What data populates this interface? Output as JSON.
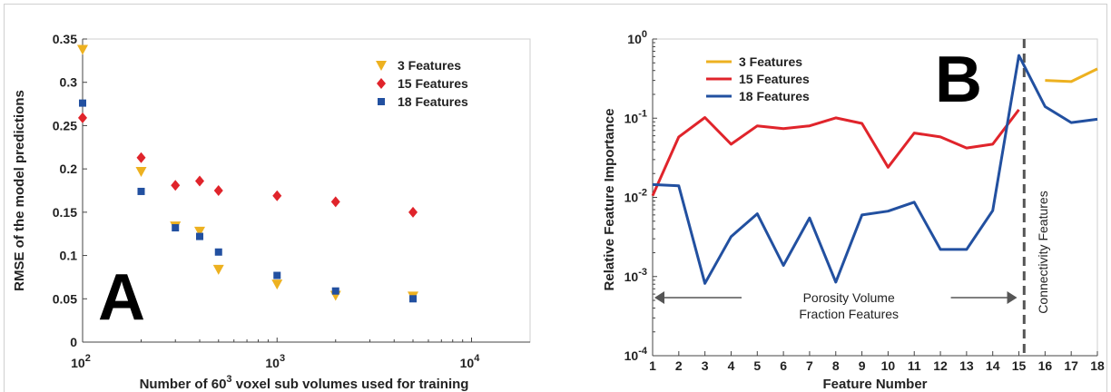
{
  "chart_data": [
    {
      "type": "scatter",
      "panel_label": "A",
      "xlabel_prefix": "Number of 60",
      "xlabel_sup": "3",
      "xlabel_suffix": " voxel sub volumes used for training",
      "ylabel": "RMSE of the model predictions",
      "xscale": "log",
      "xlim": [
        100,
        20000
      ],
      "ylim": [
        0,
        0.35
      ],
      "yticks": [
        "0",
        "0.05",
        "0.1",
        "0.15",
        "0.2",
        "0.25",
        "0.3",
        "0.35"
      ],
      "xticks": [
        {
          "base": "10",
          "exp": "2"
        },
        {
          "base": "10",
          "exp": "3"
        },
        {
          "base": "10",
          "exp": "4"
        }
      ],
      "legend_position": "top-right",
      "series": [
        {
          "name": "3 Features",
          "color": "#EDB120",
          "marker": "triangle-down",
          "x": [
            100,
            200,
            300,
            400,
            500,
            1000,
            2000,
            5000
          ],
          "y": [
            0.338,
            0.197,
            0.134,
            0.128,
            0.084,
            0.067,
            0.054,
            0.053
          ]
        },
        {
          "name": "15 Features",
          "color": "#E0242B",
          "marker": "diamond",
          "x": [
            100,
            200,
            300,
            400,
            500,
            1000,
            2000,
            5000
          ],
          "y": [
            0.259,
            0.213,
            0.181,
            0.186,
            0.175,
            0.169,
            0.162,
            0.15
          ]
        },
        {
          "name": "18 Features",
          "color": "#2250A0",
          "marker": "square",
          "x": [
            100,
            200,
            300,
            400,
            500,
            1000,
            2000,
            5000
          ],
          "y": [
            0.276,
            0.174,
            0.132,
            0.122,
            0.104,
            0.077,
            0.059,
            0.05
          ]
        }
      ]
    },
    {
      "type": "line",
      "panel_label": "B",
      "xlabel": "Feature Number",
      "ylabel": "Relative Feature Importance",
      "yscale": "log",
      "xlim": [
        1,
        18
      ],
      "ylim": [
        0.0001,
        1
      ],
      "x_ticks": [
        "1",
        "2",
        "3",
        "4",
        "5",
        "6",
        "7",
        "8",
        "9",
        "10",
        "11",
        "12",
        "13",
        "14",
        "15",
        "16",
        "17",
        "18"
      ],
      "yticks": [
        {
          "base": "10",
          "exp": "0"
        },
        {
          "base": "10",
          "exp": "-1"
        },
        {
          "base": "10",
          "exp": "-2"
        },
        {
          "base": "10",
          "exp": "-3"
        },
        {
          "base": "10",
          "exp": "-4"
        }
      ],
      "legend_position": "top-left",
      "divider_x": 15.2,
      "annotations": {
        "porosity_line1": "Porosity Volume",
        "porosity_line2": "Fraction Features",
        "connectivity": "Connectivity Features"
      },
      "series": [
        {
          "name": "3 Features",
          "color": "#EDB120",
          "x": [
            16,
            17,
            18
          ],
          "y": [
            0.3,
            0.29,
            0.42
          ]
        },
        {
          "name": "15 Features",
          "color": "#E0242B",
          "x": [
            1,
            2,
            3,
            4,
            5,
            6,
            7,
            8,
            9,
            10,
            11,
            12,
            13,
            14,
            15
          ],
          "y": [
            0.0105,
            0.058,
            0.102,
            0.047,
            0.08,
            0.074,
            0.08,
            0.101,
            0.086,
            0.024,
            0.065,
            0.058,
            0.042,
            0.047,
            0.128
          ]
        },
        {
          "name": "18 Features",
          "color": "#2250A0",
          "x": [
            1,
            2,
            3,
            4,
            5,
            6,
            7,
            8,
            9,
            10,
            11,
            12,
            13,
            14,
            15,
            16,
            17,
            18
          ],
          "y": [
            0.0145,
            0.014,
            0.00082,
            0.0032,
            0.0062,
            0.00138,
            0.0055,
            0.00085,
            0.006,
            0.0067,
            0.0087,
            0.0022,
            0.0022,
            0.0068,
            0.62,
            0.14,
            0.088,
            0.097
          ]
        }
      ]
    }
  ]
}
